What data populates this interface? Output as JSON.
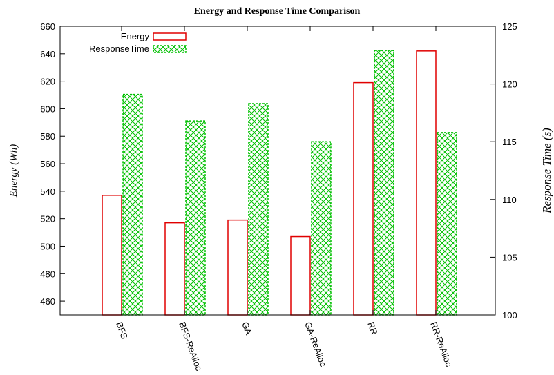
{
  "chart_data": {
    "type": "bar",
    "title": "Energy and Response Time Comparison",
    "categories": [
      "BFS",
      "BFS-ReAlloc",
      "GA",
      "GA-ReAlloc",
      "RR",
      "RR-ReAlloc"
    ],
    "series": [
      {
        "name": "Energy",
        "axis": "left",
        "values": [
          537,
          517,
          519,
          507,
          619,
          642
        ],
        "color": "#e00000"
      },
      {
        "name": "ResponseTime",
        "axis": "right",
        "values": [
          119.1,
          116.8,
          118.3,
          115.0,
          122.9,
          115.8
        ],
        "color": "#00c000"
      }
    ],
    "ylabel": "Energy (Wh)",
    "y2label": "Response Time (s)",
    "ylim": [
      450,
      660
    ],
    "y2lim": [
      100,
      125
    ],
    "yticks": [
      460,
      480,
      500,
      520,
      540,
      560,
      580,
      600,
      620,
      640,
      660
    ],
    "y2ticks": [
      100,
      105,
      110,
      115,
      120,
      125
    ],
    "legend_position": "top-left",
    "grid": false
  }
}
